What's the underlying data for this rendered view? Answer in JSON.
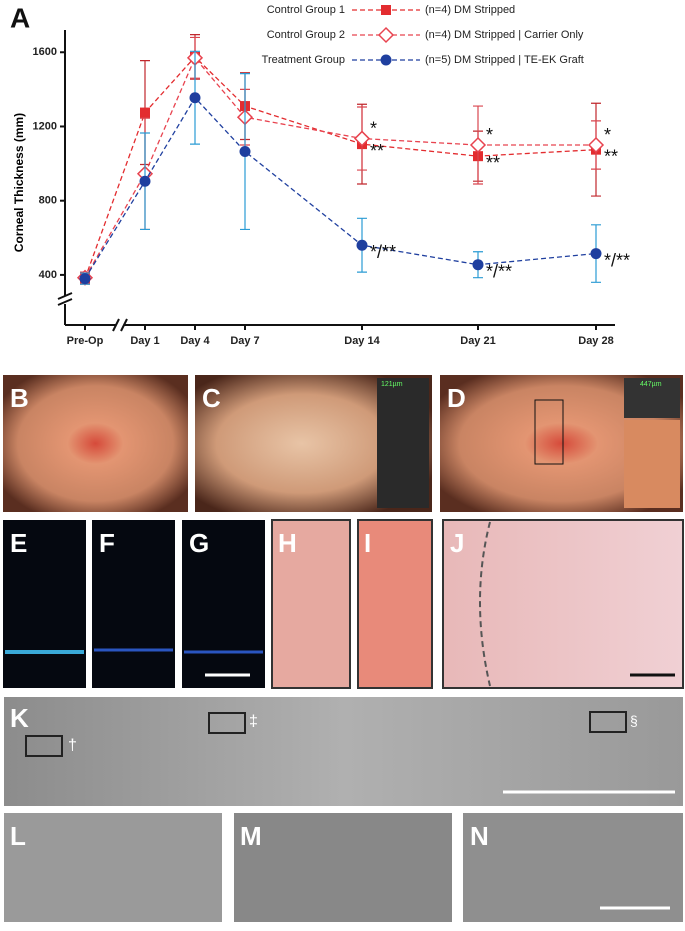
{
  "chart_data": {
    "type": "line",
    "panel_label": "A",
    "y_label": "Corneal Thickness (mm)",
    "categories": [
      "Pre-Op",
      "Day 1",
      "Day 4",
      "Day 7",
      "Day 14",
      "Day 21",
      "Day 28"
    ],
    "ylim": [
      130,
      1720
    ],
    "yticks": [
      400,
      800,
      1200,
      1600
    ],
    "series": [
      {
        "name": "Control Group 1",
        "note": "(n=4) DM Stripped",
        "color": "#e32c2f",
        "error_color": "#c0272d",
        "marker": "square",
        "values": [
          380,
          1275,
          1575,
          1310,
          1105,
          1040,
          1075
        ],
        "errors": [
          30,
          280,
          120,
          180,
          215,
          135,
          250
        ],
        "marker_labels": [
          null,
          null,
          null,
          null,
          "**",
          "**",
          "**"
        ]
      },
      {
        "name": "Control Group 2",
        "note": "(n=4) DM Stripped | Carrier Only",
        "color": "#e8434f",
        "error_color": "#d9464f",
        "marker": "diamond",
        "values": [
          385,
          945,
          1570,
          1250,
          1135,
          1100,
          1100
        ],
        "errors": [
          30,
          300,
          110,
          150,
          170,
          210,
          130
        ],
        "marker_labels": [
          null,
          null,
          null,
          null,
          "*",
          "*",
          "*"
        ]
      },
      {
        "name": "Treatment Group",
        "note": "(n=5) DM Stripped | TE-EK Graft",
        "color": "#1f3f9f",
        "error_color": "#2a9bd4",
        "marker": "circle",
        "values": [
          380,
          905,
          1355,
          1065,
          560,
          455,
          515
        ],
        "errors": [
          30,
          260,
          250,
          420,
          145,
          70,
          155
        ],
        "marker_labels": [
          null,
          null,
          null,
          null,
          "*/**",
          "*/**",
          "*/**"
        ]
      }
    ]
  },
  "panels": {
    "labels": [
      "B",
      "C",
      "D",
      "E",
      "F",
      "G",
      "H",
      "I",
      "J",
      "K",
      "L",
      "M",
      "N"
    ],
    "oct_c": "121µm",
    "oct_d": "447µm",
    "k_marks": [
      "†",
      "‡",
      "§"
    ]
  }
}
